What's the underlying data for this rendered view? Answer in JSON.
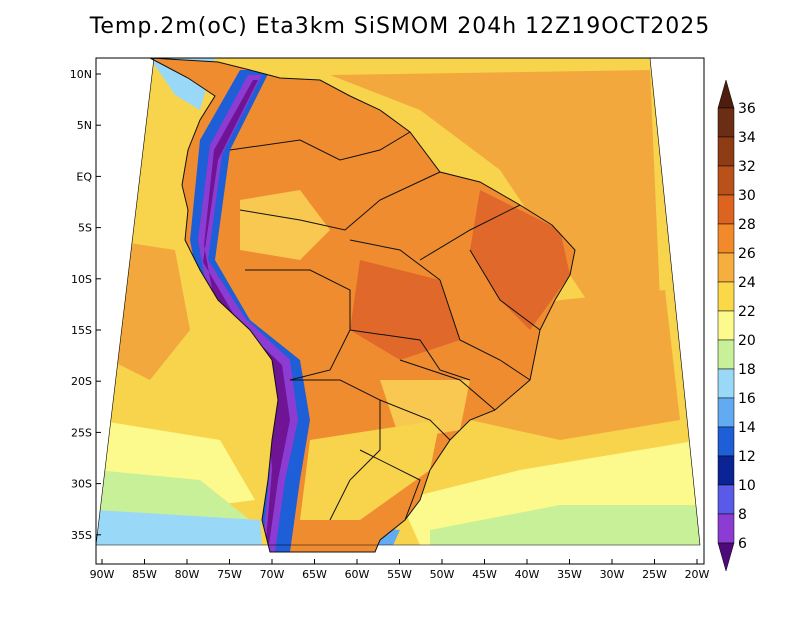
{
  "title": "Temp.2m(oC) Eta3km SiSMOM 204h 12Z19OCT2025",
  "lat_ticks": [
    "10N",
    "5N",
    "EQ",
    "5S",
    "10S",
    "15S",
    "20S",
    "25S",
    "30S",
    "35S"
  ],
  "lon_ticks": [
    "90W",
    "85W",
    "80W",
    "75W",
    "70W",
    "65W",
    "60W",
    "55W",
    "50W",
    "45W",
    "40W",
    "35W",
    "30W",
    "25W",
    "20W"
  ],
  "colorbar": {
    "labels": [
      "36",
      "34",
      "32",
      "30",
      "28",
      "26",
      "24",
      "22",
      "20",
      "18",
      "16",
      "14",
      "12",
      "10",
      "8",
      "6"
    ],
    "colors": [
      "#6b2e14",
      "#8e3c14",
      "#b8521a",
      "#dc6420",
      "#f28a2c",
      "#f6ae3e",
      "#fbd84a",
      "#fcfa8c",
      "#c8f098",
      "#9ad8f8",
      "#62aaf2",
      "#1e5ed6",
      "#0a2496",
      "#5a5ae8",
      "#8c3cd2",
      "#6e1494"
    ],
    "top_arrow_color": "#4e1e0c",
    "bottom_arrow_color": "#4e0a78"
  },
  "palette": {
    "ocean_warm": "#f8d44c",
    "ocean_hot": "#f3a83e",
    "ocean_cool": "#fcfa8c",
    "ocean_cooler": "#c8f098",
    "ocean_cold": "#9ad8f8",
    "ocean_colder": "#62aaf2",
    "land_base": "#f08c30",
    "land_hot": "#e0682a",
    "land_mild": "#f8c850",
    "andes_cold": "#6e1494",
    "andes_cool": "#8c3cd2",
    "andes_blue": "#1e5ed6",
    "borders": "#111111"
  }
}
